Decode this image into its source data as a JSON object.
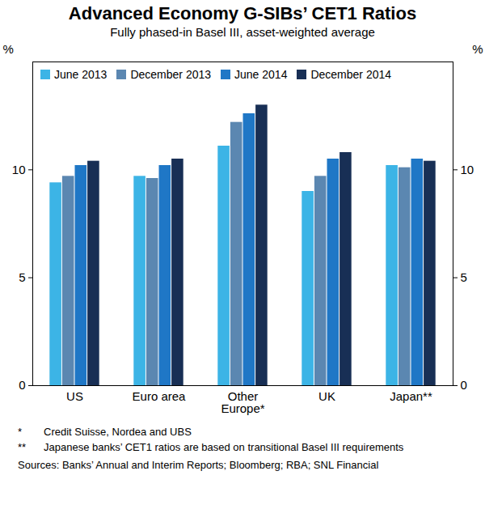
{
  "chart_data": {
    "type": "bar",
    "title": "Advanced Economy G-SIBs’ CET1 Ratios",
    "subtitle": "Fully phased-in Basel III, asset-weighted average",
    "y_label": "%",
    "categories": [
      "US",
      "Euro area",
      "Other\nEurope*",
      "UK",
      "Japan**"
    ],
    "series": [
      {
        "name": "June 2013",
        "color": "#3cb4e6",
        "values": [
          9.4,
          9.7,
          11.1,
          9.0,
          10.2
        ]
      },
      {
        "name": "December 2013",
        "color": "#5b87b1",
        "values": [
          9.7,
          9.6,
          12.2,
          9.7,
          10.1
        ]
      },
      {
        "name": "June 2014",
        "color": "#1f77c6",
        "values": [
          10.2,
          10.2,
          12.6,
          10.5,
          10.5
        ]
      },
      {
        "name": "December 2014",
        "color": "#182f55",
        "values": [
          10.4,
          10.5,
          13.0,
          10.8,
          10.4
        ]
      }
    ],
    "ylim": [
      0,
      15
    ],
    "yticks": [
      0,
      5,
      10
    ],
    "grid": false,
    "legend": "top",
    "notes": [
      {
        "marker": "*",
        "text": "Credit Suisse, Nordea and UBS"
      },
      {
        "marker": "**",
        "text": "Japanese banks’ CET1 ratios are based on transitional Basel III requirements"
      }
    ],
    "sources": "Sources:  Banks’ Annual and Interim Reports; Bloomberg; RBA; SNL Financial"
  }
}
